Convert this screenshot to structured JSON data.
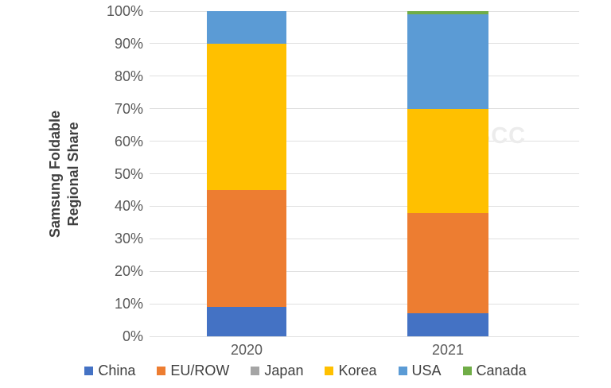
{
  "chart_data": {
    "type": "bar",
    "subtype": "100-percent-stacked-column",
    "title": "",
    "categories": [
      "2020",
      "2021"
    ],
    "series": [
      {
        "name": "China",
        "color": "#4472C4",
        "values": [
          9,
          7
        ]
      },
      {
        "name": "EU/ROW",
        "color": "#ED7D31",
        "values": [
          36,
          31
        ]
      },
      {
        "name": "Japan",
        "color": "#A5A5A5",
        "values": [
          0,
          0
        ]
      },
      {
        "name": "Korea",
        "color": "#FFC000",
        "values": [
          45,
          32
        ]
      },
      {
        "name": "USA",
        "color": "#5B9BD5",
        "values": [
          10,
          29
        ]
      },
      {
        "name": "Canada",
        "color": "#70AD47",
        "values": [
          0,
          1
        ]
      }
    ],
    "ylabel_lines": [
      "Samsung Foldable",
      "Regional Share"
    ],
    "y_ticks": [
      "0%",
      "10%",
      "20%",
      "30%",
      "40%",
      "50%",
      "60%",
      "70%",
      "80%",
      "90%",
      "100%"
    ],
    "ylim": [
      0,
      100
    ],
    "grid": true,
    "legend_position": "bottom",
    "watermark": "DSCC"
  },
  "colors": {
    "background": "#FFFFFF",
    "gridline": "#E0E0E0",
    "axis_text": "#595959",
    "axis_title_text": "#404040",
    "legend_text": "#404040",
    "watermark_text": "#ECECEC"
  }
}
